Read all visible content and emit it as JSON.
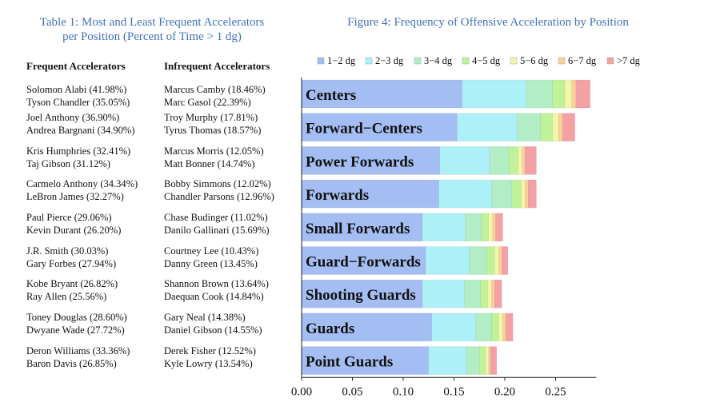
{
  "table": {
    "title_line1": "Table 1: Most and Least Frequent Accelerators",
    "title_line2": "per Position (Percent of Time > 1 dg)",
    "col_frequent": "Frequent Accelerators",
    "col_infrequent": "Infrequent Accelerators",
    "rows": [
      {
        "f1": "Solomon Alabi (41.98%)",
        "f2": "Tyson Chandler (35.05%)",
        "i1": "Marcus Camby (18.46%)",
        "i2": "Marc Gasol (22.39%)"
      },
      {
        "f1": "Joel Anthony (36.90%)",
        "f2": "Andrea Bargnani (34.90%)",
        "i1": "Troy Murphy (17.81%)",
        "i2": "Tyrus Thomas (18.57%)"
      },
      {
        "f1": "Kris Humphries (32.41%)",
        "f2": "Taj Gibson (31.12%)",
        "i1": "Marcus Morris (12.05%)",
        "i2": "Matt Bonner (14.74%)"
      },
      {
        "f1": "Carmelo Anthony (34.34%)",
        "f2": "LeBron James (32.27%)",
        "i1": "Bobby Simmons (12.02%)",
        "i2": "Chandler Parsons (12.96%)"
      },
      {
        "f1": "Paul Pierce (29.06%)",
        "f2": "Kevin Durant (26.20%)",
        "i1": "Chase Budinger (11.02%)",
        "i2": "Danilo Gallinari (15.69%)"
      },
      {
        "f1": "J.R. Smith (30.03%)",
        "f2": "Gary Forbes (27.94%)",
        "i1": "Courtney Lee (10.43%)",
        "i2": "Danny Green (13.45%)"
      },
      {
        "f1": "Kobe Bryant (26.82%)",
        "f2": "Ray Allen (25.56%)",
        "i1": "Shannon Brown (13.64%)",
        "i2": "Daequan Cook (14.84%)"
      },
      {
        "f1": "Toney Douglas (28.60%)",
        "f2": "Dwyane Wade (27.72%)",
        "i1": "Gary Neal (14.38%)",
        "i2": "Daniel Gibson (14.55%)"
      },
      {
        "f1": "Deron Williams (33.36%)",
        "f2": "Baron Davis (26.85%)",
        "i1": "Derek Fisher (12.52%)",
        "i2": "Kyle Lowry (13.54%)"
      }
    ]
  },
  "chart_data": {
    "type": "bar",
    "orientation": "horizontal",
    "stacked": true,
    "title": "Figure 4: Frequency of Offensive Acceleration by Position",
    "categories": [
      "Centers",
      "Forward−Centers",
      "Power Forwards",
      "Forwards",
      "Small Forwards",
      "Guard−Forwards",
      "Shooting Guards",
      "Guards",
      "Point Guards"
    ],
    "series": [
      {
        "name": "1−2 dg",
        "color": "#a4bdf2",
        "values": [
          0.158,
          0.153,
          0.136,
          0.135,
          0.119,
          0.122,
          0.119,
          0.128,
          0.125
        ]
      },
      {
        "name": "2−3 dg",
        "color": "#aef0f8",
        "values": [
          0.063,
          0.059,
          0.049,
          0.052,
          0.042,
          0.043,
          0.041,
          0.043,
          0.037
        ]
      },
      {
        "name": "3−4 dg",
        "color": "#b2edc6",
        "values": [
          0.026,
          0.023,
          0.019,
          0.02,
          0.016,
          0.017,
          0.016,
          0.016,
          0.013
        ]
      },
      {
        "name": "4−5 dg",
        "color": "#c0f29a",
        "values": [
          0.012,
          0.012,
          0.009,
          0.009,
          0.007,
          0.008,
          0.007,
          0.007,
          0.006
        ]
      },
      {
        "name": "5−6 dg",
        "color": "#f4f5aa",
        "values": [
          0.007,
          0.006,
          0.004,
          0.004,
          0.004,
          0.004,
          0.004,
          0.004,
          0.003
        ]
      },
      {
        "name": "6−7 dg",
        "color": "#f9d09c",
        "values": [
          0.004,
          0.004,
          0.003,
          0.003,
          0.003,
          0.003,
          0.003,
          0.003,
          0.002
        ]
      },
      {
        "name": ">7 dg",
        "color": "#f3a1a4",
        "values": [
          0.014,
          0.012,
          0.011,
          0.008,
          0.007,
          0.006,
          0.007,
          0.007,
          0.006
        ]
      }
    ],
    "xlim": [
      0,
      0.29
    ],
    "xticks": [
      "0.00",
      "0.05",
      "0.10",
      "0.15",
      "0.20",
      "0.25"
    ],
    "xtick_values": [
      0,
      0.05,
      0.1,
      0.15,
      0.2,
      0.25
    ],
    "legend_position": "top",
    "grid": false
  }
}
